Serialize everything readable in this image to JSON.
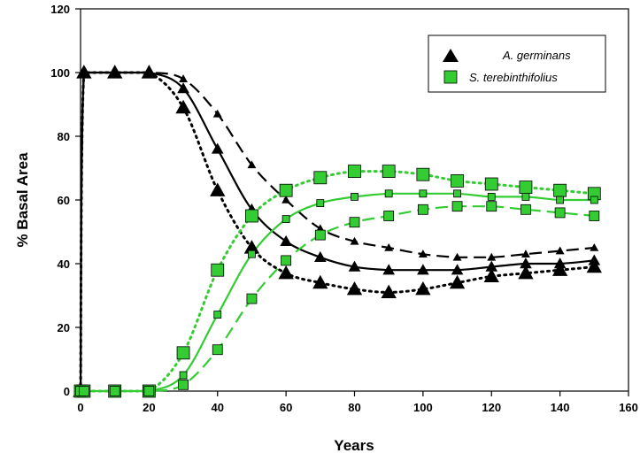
{
  "chart_data": {
    "type": "line",
    "xlabel": "Years",
    "ylabel": "% Basal Area",
    "xlim": [
      0,
      160
    ],
    "ylim": [
      0,
      120
    ],
    "xticks": [
      0,
      20,
      40,
      60,
      80,
      100,
      120,
      140,
      160
    ],
    "yticks": [
      0,
      20,
      40,
      60,
      80,
      100,
      120
    ],
    "grid": false,
    "legend_position": "top-right",
    "legend": [
      {
        "name": "A. germinans",
        "marker": "triangle",
        "color": "#000000"
      },
      {
        "name": "S. terebinthifolius",
        "marker": "square",
        "color": "#33cc33"
      }
    ],
    "x": [
      0,
      1,
      10,
      20,
      30,
      40,
      50,
      60,
      70,
      80,
      90,
      100,
      110,
      120,
      130,
      140,
      150
    ],
    "series": [
      {
        "species": "A. germinans",
        "style": "dashed",
        "color": "#000000",
        "marker": "triangle",
        "marker_size": "small",
        "values": [
          0,
          100,
          100,
          100,
          98,
          87,
          71,
          60,
          51,
          47,
          45,
          43,
          42,
          42,
          43,
          44,
          45
        ]
      },
      {
        "species": "A. germinans",
        "style": "solid",
        "color": "#000000",
        "marker": "triangle",
        "marker_size": "medium",
        "values": [
          0,
          100,
          100,
          100,
          95,
          76,
          57,
          47,
          42,
          39,
          38,
          38,
          38,
          39,
          40,
          40,
          41
        ]
      },
      {
        "species": "A. germinans",
        "style": "dotted",
        "color": "#000000",
        "marker": "triangle",
        "marker_size": "large",
        "values": [
          0,
          100,
          100,
          100,
          89,
          63,
          45,
          37,
          34,
          32,
          31,
          32,
          34,
          36,
          37,
          38,
          39
        ]
      },
      {
        "species": "S. terebinthifolius",
        "style": "dotted",
        "color": "#33cc33",
        "marker": "square",
        "marker_size": "large",
        "values": [
          0,
          0,
          0,
          0,
          12,
          38,
          55,
          63,
          67,
          69,
          69,
          68,
          66,
          65,
          64,
          63,
          62
        ]
      },
      {
        "species": "S. terebinthifolius",
        "style": "solid",
        "color": "#33cc33",
        "marker": "square",
        "marker_size": "small",
        "values": [
          0,
          0,
          0,
          0,
          5,
          24,
          43,
          54,
          59,
          61,
          62,
          62,
          62,
          61,
          61,
          60,
          60
        ]
      },
      {
        "species": "S. terebinthifolius",
        "style": "dashed",
        "color": "#33cc33",
        "marker": "square",
        "marker_size": "medium",
        "values": [
          0,
          0,
          0,
          0,
          2,
          13,
          29,
          41,
          49,
          53,
          55,
          57,
          58,
          58,
          57,
          56,
          55
        ]
      }
    ]
  }
}
